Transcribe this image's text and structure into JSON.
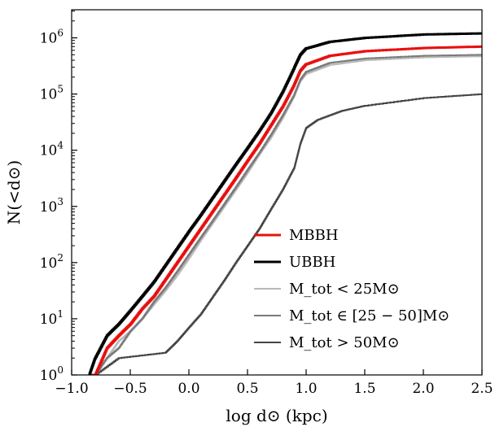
{
  "chart_data": {
    "type": "line",
    "step": true,
    "xlabel": "log d⊙ (kpc)",
    "ylabel": "N(<d⊙)",
    "xlim": [
      -1.0,
      2.5
    ],
    "ylim_log10": [
      0,
      6.5
    ],
    "yscale": "log",
    "x_ticks": [
      -1.0,
      -0.5,
      0.0,
      0.5,
      1.0,
      1.5,
      2.0,
      2.5
    ],
    "x_tick_labels": [
      "−1.0",
      "−0.5",
      "0.0",
      "0.5",
      "1.0",
      "1.5",
      "2.0",
      "2.5"
    ],
    "y_ticks_exp": [
      0,
      1,
      2,
      3,
      4,
      5,
      6
    ],
    "y_tick_base": "10",
    "grid": false,
    "legend_position": "lower-right",
    "series": [
      {
        "name": "MBBH",
        "color": "#e8100f",
        "points": [
          [
            -0.85,
            1
          ],
          [
            -0.8,
            1
          ],
          [
            -0.7,
            3
          ],
          [
            -0.6,
            5
          ],
          [
            -0.5,
            8
          ],
          [
            -0.4,
            15
          ],
          [
            -0.3,
            25
          ],
          [
            -0.2,
            50
          ],
          [
            -0.1,
            100
          ],
          [
            0.0,
            200
          ],
          [
            0.1,
            400
          ],
          [
            0.2,
            800
          ],
          [
            0.3,
            1600
          ],
          [
            0.4,
            3200
          ],
          [
            0.5,
            6500
          ],
          [
            0.6,
            13000
          ],
          [
            0.7,
            28000
          ],
          [
            0.8,
            60000
          ],
          [
            0.9,
            150000
          ],
          [
            0.95,
            260000
          ],
          [
            1.0,
            340000
          ],
          [
            1.2,
            480000
          ],
          [
            1.5,
            580000
          ],
          [
            2.0,
            660000
          ],
          [
            2.5,
            700000
          ]
        ]
      },
      {
        "name": "UBBH",
        "color": "#000000",
        "points": [
          [
            -0.85,
            1
          ],
          [
            -0.8,
            2
          ],
          [
            -0.7,
            5
          ],
          [
            -0.6,
            8
          ],
          [
            -0.5,
            14
          ],
          [
            -0.4,
            25
          ],
          [
            -0.3,
            45
          ],
          [
            -0.2,
            90
          ],
          [
            -0.1,
            180
          ],
          [
            0.0,
            360
          ],
          [
            0.1,
            700
          ],
          [
            0.2,
            1400
          ],
          [
            0.3,
            2800
          ],
          [
            0.4,
            5600
          ],
          [
            0.5,
            11000
          ],
          [
            0.6,
            22000
          ],
          [
            0.7,
            46000
          ],
          [
            0.8,
            110000
          ],
          [
            0.9,
            300000
          ],
          [
            0.95,
            500000
          ],
          [
            1.0,
            650000
          ],
          [
            1.2,
            850000
          ],
          [
            1.5,
            1000000
          ],
          [
            2.0,
            1150000
          ],
          [
            2.5,
            1200000
          ]
        ]
      },
      {
        "name": "M_tot < 25M⊙",
        "color": "#b9b9b9",
        "points": [
          [
            -0.8,
            1
          ],
          [
            -0.7,
            2
          ],
          [
            -0.6,
            4
          ],
          [
            -0.5,
            6
          ],
          [
            -0.4,
            10
          ],
          [
            -0.3,
            18
          ],
          [
            -0.2,
            32
          ],
          [
            -0.1,
            60
          ],
          [
            0.0,
            120
          ],
          [
            0.1,
            250
          ],
          [
            0.2,
            500
          ],
          [
            0.3,
            1000
          ],
          [
            0.4,
            2000
          ],
          [
            0.5,
            4000
          ],
          [
            0.6,
            8500
          ],
          [
            0.7,
            17000
          ],
          [
            0.8,
            38000
          ],
          [
            0.9,
            95000
          ],
          [
            0.95,
            170000
          ],
          [
            1.0,
            230000
          ],
          [
            1.2,
            330000
          ],
          [
            1.5,
            400000
          ],
          [
            2.0,
            450000
          ],
          [
            2.5,
            470000
          ]
        ]
      },
      {
        "name": "M_tot ∈ [25 − 50]M⊙",
        "color": "#7a7a7a",
        "points": [
          [
            -0.8,
            1
          ],
          [
            -0.7,
            2
          ],
          [
            -0.6,
            3
          ],
          [
            -0.5,
            6
          ],
          [
            -0.4,
            10
          ],
          [
            -0.3,
            20
          ],
          [
            -0.2,
            36
          ],
          [
            -0.1,
            70
          ],
          [
            0.0,
            140
          ],
          [
            0.1,
            280
          ],
          [
            0.2,
            550
          ],
          [
            0.3,
            1100
          ],
          [
            0.4,
            2200
          ],
          [
            0.5,
            4500
          ],
          [
            0.6,
            9000
          ],
          [
            0.7,
            19000
          ],
          [
            0.8,
            42000
          ],
          [
            0.9,
            100000
          ],
          [
            0.95,
            180000
          ],
          [
            1.0,
            250000
          ],
          [
            1.2,
            360000
          ],
          [
            1.5,
            430000
          ],
          [
            2.0,
            480000
          ],
          [
            2.5,
            500000
          ]
        ]
      },
      {
        "name": "M_tot > 50M⊙",
        "color": "#444444",
        "points": [
          [
            -0.8,
            1
          ],
          [
            -0.6,
            2
          ],
          [
            -0.2,
            2.5
          ],
          [
            -0.1,
            4
          ],
          [
            0.0,
            7
          ],
          [
            0.1,
            12
          ],
          [
            0.2,
            24
          ],
          [
            0.3,
            48
          ],
          [
            0.4,
            100
          ],
          [
            0.5,
            200
          ],
          [
            0.6,
            400
          ],
          [
            0.7,
            900
          ],
          [
            0.8,
            2000
          ],
          [
            0.9,
            5000
          ],
          [
            0.95,
            13000
          ],
          [
            1.0,
            25000
          ],
          [
            1.1,
            35000
          ],
          [
            1.3,
            50000
          ],
          [
            1.5,
            62000
          ],
          [
            2.0,
            85000
          ],
          [
            2.5,
            100000
          ]
        ]
      }
    ],
    "legend": [
      {
        "label": "MBBH",
        "color": "#e8100f",
        "width": 3
      },
      {
        "label": "UBBH",
        "color": "#000000",
        "width": 3
      },
      {
        "label": "M_tot < 25M⊙",
        "color": "#b9b9b9",
        "width": 2
      },
      {
        "label": "M_tot ∈ [25 − 50]M⊙",
        "color": "#7a7a7a",
        "width": 2
      },
      {
        "label": "M_tot > 50M⊙",
        "color": "#444444",
        "width": 2
      }
    ]
  }
}
